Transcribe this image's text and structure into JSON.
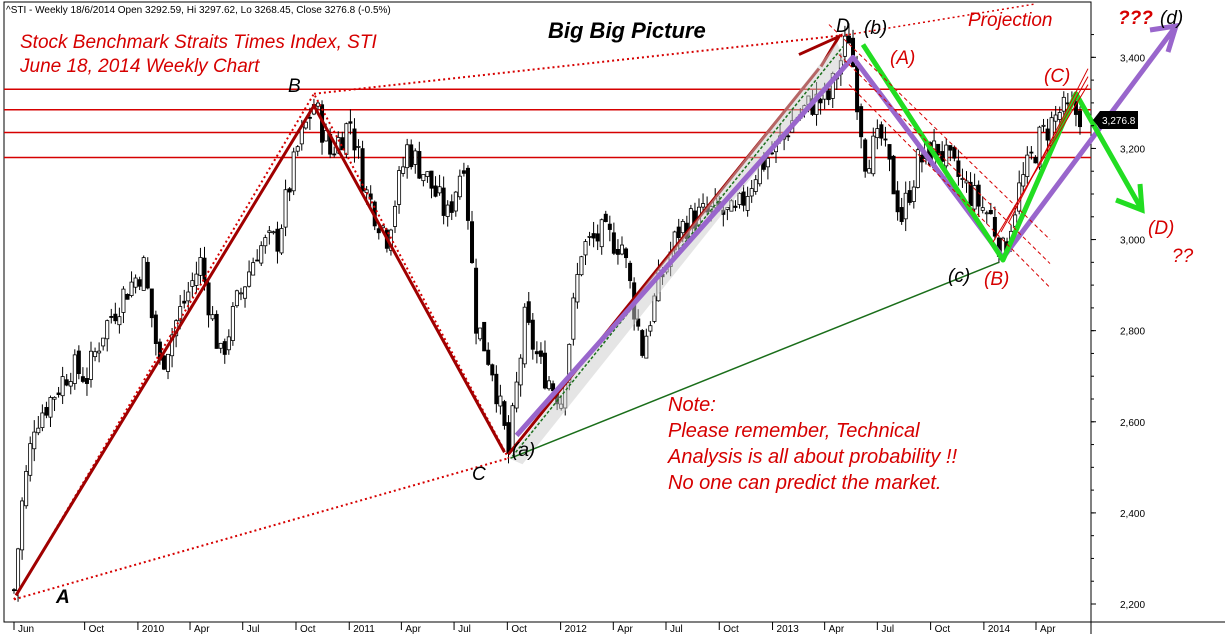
{
  "header": {
    "info": "^STI - Weekly 18/6/2014 Open 3292.59, Hi 3297.62, Lo 3268.45, Close 3276.8 (-0.5%)"
  },
  "titles": {
    "line1": "Stock Benchmark Straits Times Index, STI",
    "line2": "June 18, 2014 Weekly Chart",
    "big_picture": "Big Big Picture",
    "projection": "Projection"
  },
  "note": {
    "lines": [
      "Note:",
      "Please remember, Technical",
      "Analysis is all about probability !!",
      "No one can predict the market."
    ]
  },
  "last_price": "3,276.8",
  "colors": {
    "red": "#d60000",
    "dark_red": "#a00000",
    "purple": "#9966cc",
    "green": "#22dd22",
    "dark_green": "#1a6e1a",
    "black": "#000000"
  },
  "chart_data": {
    "type": "candlestick",
    "title": "Big Big Picture",
    "ylim": [
      2180,
      3520
    ],
    "y_ticks": [
      2200,
      2400,
      2600,
      2800,
      3000,
      3200,
      3400
    ],
    "y_tick_labels": [
      "2,200",
      "2,400",
      "2,600",
      "2,800",
      "3,000",
      "3,200",
      "3,400"
    ],
    "x_tick_labels": [
      "Jun",
      "Oct",
      "2010",
      "Apr",
      "Jul",
      "Oct",
      "2011",
      "Apr",
      "Jul",
      "Oct",
      "2012",
      "Apr",
      "Jul",
      "Oct",
      "2013",
      "Apr",
      "Jul",
      "Oct",
      "2014",
      "Apr"
    ],
    "x_tick_months": [
      "2009-06",
      "2009-10",
      "2010-01",
      "2010-04",
      "2010-07",
      "2010-10",
      "2011-01",
      "2011-04",
      "2011-07",
      "2011-10",
      "2012-01",
      "2012-04",
      "2012-07",
      "2012-10",
      "2013-01",
      "2013-04",
      "2013-07",
      "2013-10",
      "2014-01",
      "2014-04"
    ],
    "resistance_levels": [
      3180,
      3235,
      3285,
      3330
    ],
    "last_close": 3276.8,
    "price_path": [
      [
        "2009-06-01",
        2230
      ],
      [
        "2009-06-15",
        2420
      ],
      [
        "2009-07-06",
        2600
      ],
      [
        "2009-08-03",
        2650
      ],
      [
        "2009-09-07",
        2720
      ],
      [
        "2009-10-05",
        2700
      ],
      [
        "2009-11-02",
        2800
      ],
      [
        "2009-12-07",
        2880
      ],
      [
        "2010-01-11",
        2940
      ],
      [
        "2010-02-08",
        2720
      ],
      [
        "2010-03-08",
        2820
      ],
      [
        "2010-04-19",
        2950
      ],
      [
        "2010-05-24",
        2740
      ],
      [
        "2010-06-21",
        2860
      ],
      [
        "2010-07-26",
        2980
      ],
      [
        "2010-08-30",
        3000
      ],
      [
        "2010-10-04",
        3200
      ],
      [
        "2010-11-01",
        3300
      ],
      [
        "2010-11-29",
        3190
      ],
      [
        "2011-01-03",
        3260
      ],
      [
        "2011-01-31",
        3100
      ],
      [
        "2011-03-07",
        3010
      ],
      [
        "2011-04-11",
        3200
      ],
      [
        "2011-05-09",
        3150
      ],
      [
        "2011-06-20",
        3050
      ],
      [
        "2011-07-18",
        3180
      ],
      [
        "2011-08-08",
        2820
      ],
      [
        "2011-09-05",
        2720
      ],
      [
        "2011-10-03",
        2530
      ],
      [
        "2011-10-31",
        2820
      ],
      [
        "2011-11-28",
        2720
      ],
      [
        "2012-01-02",
        2650
      ],
      [
        "2012-02-06",
        2980
      ],
      [
        "2012-03-12",
        3010
      ],
      [
        "2012-04-16",
        2990
      ],
      [
        "2012-05-21",
        2760
      ],
      [
        "2012-06-18",
        2900
      ],
      [
        "2012-07-23",
        3020
      ],
      [
        "2012-08-20",
        3050
      ],
      [
        "2012-09-24",
        3060
      ],
      [
        "2012-10-29",
        3050
      ],
      [
        "2012-12-03",
        3150
      ],
      [
        "2013-01-07",
        3200
      ],
      [
        "2013-02-04",
        3260
      ],
      [
        "2013-03-11",
        3300
      ],
      [
        "2013-04-08",
        3310
      ],
      [
        "2013-05-13",
        3450
      ],
      [
        "2013-06-10",
        3180
      ],
      [
        "2013-07-08",
        3220
      ],
      [
        "2013-08-12",
        3050
      ],
      [
        "2013-09-09",
        3170
      ],
      [
        "2013-10-14",
        3200
      ],
      [
        "2013-11-11",
        3150
      ],
      [
        "2013-12-09",
        3100
      ],
      [
        "2014-01-13",
        3050
      ],
      [
        "2014-02-03",
        2970
      ],
      [
        "2014-03-03",
        3110
      ],
      [
        "2014-04-07",
        3220
      ],
      [
        "2014-05-12",
        3280
      ],
      [
        "2014-06-16",
        3277
      ]
    ],
    "wave_points": {
      "A": [
        "2009-06-01",
        2210
      ],
      "B": [
        "2010-11-01",
        3320
      ],
      "C": [
        "2011-10-03",
        2520
      ],
      "D": [
        "2013-05-13",
        3450
      ]
    },
    "annotations": [
      "A",
      "B",
      "C",
      "D",
      "(a)",
      "(b)",
      "(c)",
      "(d)",
      "(A)",
      "(B)",
      "(C)",
      "(D)",
      "???",
      "??"
    ]
  },
  "labels": {
    "A": "A",
    "B": "B",
    "C": "C",
    "D": "D",
    "a_small": "(a)",
    "b_small": "(b)",
    "c_small": "(c)",
    "d_small": "(d)",
    "A_paren": "(A)",
    "B_paren": "(B)",
    "C_paren": "(C)",
    "D_paren": "(D)",
    "q3": "???",
    "q2": "??"
  }
}
